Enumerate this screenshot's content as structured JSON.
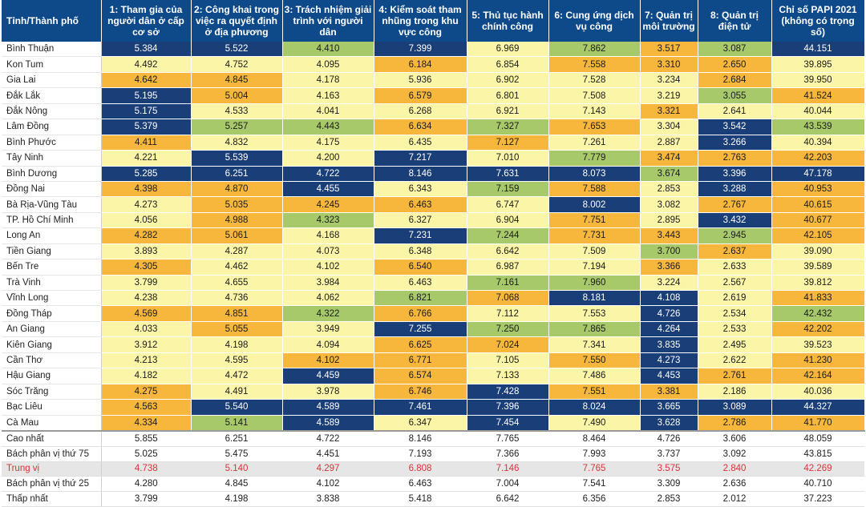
{
  "header": [
    "Tỉnh/Thành phố",
    "1: Tham gia của người dân ở cấp cơ sở",
    "2: Công khai trong việc ra quyết định ở địa phương",
    "3: Trách nhiệm giải trình với người dân",
    "4: Kiểm soát tham nhũng trong khu vực công",
    "5: Thủ tục hành chính công",
    "6: Cung ứng dịch vụ công",
    "7: Quản trị môi trường",
    "8: Quản trị điện tử",
    "Chỉ số PAPI 2021 (không có trọng số)"
  ],
  "color_scale": {
    "navy": "#1a3e78",
    "green": "#a8c96a",
    "orange": "#f6b73c",
    "yellow": "#fbf5a8",
    "header": "#0e4a8a",
    "median_text": "#d8343a"
  },
  "rows": [
    {
      "name": "Bình Thuận",
      "v": [
        "5.384",
        "5.522",
        "4.410",
        "7.399",
        "6.969",
        "7.862",
        "3.517",
        "3.087",
        "44.151"
      ],
      "c": [
        "n",
        "n",
        "g",
        "n",
        "y",
        "g",
        "o",
        "g",
        "n"
      ]
    },
    {
      "name": "Kon Tum",
      "v": [
        "4.492",
        "4.752",
        "4.095",
        "6.184",
        "6.854",
        "7.558",
        "3.310",
        "2.650",
        "39.895"
      ],
      "c": [
        "y",
        "y",
        "y",
        "o",
        "y",
        "o",
        "o",
        "o",
        "y"
      ]
    },
    {
      "name": "Gia Lai",
      "v": [
        "4.642",
        "4.845",
        "4.178",
        "5.936",
        "6.902",
        "7.528",
        "3.234",
        "2.684",
        "39.950"
      ],
      "c": [
        "o",
        "o",
        "y",
        "y",
        "y",
        "y",
        "y",
        "o",
        "y"
      ]
    },
    {
      "name": "Đắk Lắk",
      "v": [
        "5.195",
        "5.004",
        "4.163",
        "6.579",
        "6.801",
        "7.508",
        "3.219",
        "3.055",
        "41.524"
      ],
      "c": [
        "n",
        "o",
        "y",
        "o",
        "y",
        "y",
        "y",
        "g",
        "o"
      ]
    },
    {
      "name": "Đắk Nông",
      "v": [
        "5.175",
        "4.533",
        "4.041",
        "6.268",
        "6.921",
        "7.143",
        "3.321",
        "2.641",
        "40.044"
      ],
      "c": [
        "n",
        "y",
        "y",
        "y",
        "y",
        "y",
        "o",
        "y",
        "y"
      ]
    },
    {
      "name": "Lâm Đồng",
      "v": [
        "5.379",
        "5.257",
        "4.443",
        "6.634",
        "7.327",
        "7.653",
        "3.304",
        "3.542",
        "43.539"
      ],
      "c": [
        "n",
        "g",
        "g",
        "o",
        "g",
        "o",
        "y",
        "n",
        "g"
      ]
    },
    {
      "name": "Bình Phước",
      "v": [
        "4.411",
        "4.832",
        "4.175",
        "6.435",
        "7.127",
        "7.261",
        "2.887",
        "3.266",
        "40.394"
      ],
      "c": [
        "o",
        "y",
        "y",
        "y",
        "o",
        "y",
        "y",
        "n",
        "y"
      ]
    },
    {
      "name": "Tây Ninh",
      "v": [
        "4.221",
        "5.539",
        "4.200",
        "7.217",
        "7.010",
        "7.779",
        "3.474",
        "2.763",
        "42.203"
      ],
      "c": [
        "y",
        "n",
        "y",
        "n",
        "y",
        "g",
        "o",
        "o",
        "o"
      ]
    },
    {
      "name": "Bình Dương",
      "v": [
        "5.285",
        "6.251",
        "4.722",
        "8.146",
        "7.631",
        "8.073",
        "3.674",
        "3.396",
        "47.178"
      ],
      "c": [
        "n",
        "n",
        "n",
        "n",
        "n",
        "n",
        "g",
        "n",
        "n"
      ]
    },
    {
      "name": "Đồng Nai",
      "v": [
        "4.398",
        "4.870",
        "4.455",
        "6.343",
        "7.159",
        "7.588",
        "2.853",
        "3.288",
        "40.953"
      ],
      "c": [
        "o",
        "o",
        "n",
        "y",
        "g",
        "o",
        "y",
        "n",
        "o"
      ]
    },
    {
      "name": "Bà Rịa-Vũng Tàu",
      "v": [
        "4.273",
        "5.035",
        "4.245",
        "6.463",
        "6.747",
        "8.002",
        "3.082",
        "2.767",
        "40.615"
      ],
      "c": [
        "y",
        "o",
        "o",
        "o",
        "y",
        "n",
        "y",
        "o",
        "o"
      ]
    },
    {
      "name": "TP. Hồ Chí Minh",
      "v": [
        "4.056",
        "4.988",
        "4.323",
        "6.327",
        "6.904",
        "7.751",
        "2.895",
        "3.432",
        "40.677"
      ],
      "c": [
        "y",
        "o",
        "g",
        "y",
        "y",
        "o",
        "y",
        "n",
        "o"
      ]
    },
    {
      "name": "Long An",
      "v": [
        "4.282",
        "5.061",
        "4.168",
        "7.231",
        "7.244",
        "7.731",
        "3.443",
        "2.945",
        "42.105"
      ],
      "c": [
        "o",
        "o",
        "y",
        "n",
        "g",
        "o",
        "o",
        "g",
        "o"
      ]
    },
    {
      "name": "Tiền Giang",
      "v": [
        "3.893",
        "4.287",
        "4.073",
        "6.348",
        "6.642",
        "7.509",
        "3.700",
        "2.637",
        "39.090"
      ],
      "c": [
        "y",
        "y",
        "y",
        "y",
        "y",
        "y",
        "g",
        "o",
        "y"
      ]
    },
    {
      "name": "Bến Tre",
      "v": [
        "4.305",
        "4.462",
        "4.102",
        "6.540",
        "6.987",
        "7.194",
        "3.366",
        "2.633",
        "39.589"
      ],
      "c": [
        "o",
        "y",
        "y",
        "o",
        "y",
        "y",
        "o",
        "y",
        "y"
      ]
    },
    {
      "name": "Trà Vinh",
      "v": [
        "3.799",
        "4.655",
        "3.984",
        "6.463",
        "7.161",
        "7.960",
        "3.224",
        "2.567",
        "39.812"
      ],
      "c": [
        "y",
        "y",
        "y",
        "y",
        "g",
        "g",
        "y",
        "y",
        "y"
      ]
    },
    {
      "name": "Vĩnh Long",
      "v": [
        "4.238",
        "4.736",
        "4.062",
        "6.821",
        "7.068",
        "8.181",
        "4.108",
        "2.619",
        "41.833"
      ],
      "c": [
        "y",
        "y",
        "y",
        "g",
        "o",
        "n",
        "n",
        "y",
        "o"
      ]
    },
    {
      "name": "Đồng Tháp",
      "v": [
        "4.569",
        "4.851",
        "4.322",
        "6.766",
        "7.112",
        "7.553",
        "4.726",
        "2.534",
        "42.432"
      ],
      "c": [
        "o",
        "o",
        "g",
        "o",
        "y",
        "y",
        "n",
        "y",
        "g"
      ]
    },
    {
      "name": "An Giang",
      "v": [
        "4.033",
        "5.055",
        "3.949",
        "7.255",
        "7.250",
        "7.865",
        "4.264",
        "2.533",
        "42.202"
      ],
      "c": [
        "y",
        "o",
        "y",
        "n",
        "g",
        "g",
        "n",
        "y",
        "o"
      ]
    },
    {
      "name": "Kiên Giang",
      "v": [
        "3.912",
        "4.198",
        "4.094",
        "6.625",
        "7.024",
        "7.341",
        "3.835",
        "2.495",
        "39.523"
      ],
      "c": [
        "y",
        "y",
        "y",
        "o",
        "o",
        "y",
        "n",
        "y",
        "y"
      ]
    },
    {
      "name": "Cần Thơ",
      "v": [
        "4.213",
        "4.595",
        "4.102",
        "6.771",
        "7.105",
        "7.550",
        "4.273",
        "2.622",
        "41.230"
      ],
      "c": [
        "y",
        "y",
        "o",
        "o",
        "y",
        "o",
        "n",
        "y",
        "o"
      ]
    },
    {
      "name": "Hậu Giang",
      "v": [
        "4.182",
        "4.472",
        "4.459",
        "6.574",
        "7.133",
        "7.486",
        "4.453",
        "2.761",
        "42.164"
      ],
      "c": [
        "y",
        "y",
        "n",
        "o",
        "y",
        "y",
        "n",
        "o",
        "o"
      ]
    },
    {
      "name": "Sóc Trăng",
      "v": [
        "4.275",
        "4.491",
        "3.978",
        "6.746",
        "7.428",
        "7.551",
        "3.381",
        "2.186",
        "40.036"
      ],
      "c": [
        "o",
        "y",
        "y",
        "o",
        "n",
        "o",
        "o",
        "y",
        "y"
      ]
    },
    {
      "name": "Bạc Liêu",
      "v": [
        "4.563",
        "5.540",
        "4.589",
        "7.461",
        "7.396",
        "8.024",
        "3.665",
        "3.089",
        "44.327"
      ],
      "c": [
        "o",
        "n",
        "n",
        "n",
        "n",
        "n",
        "n",
        "n",
        "n"
      ]
    },
    {
      "name": "Cà Mau",
      "v": [
        "4.334",
        "5.141",
        "4.589",
        "6.347",
        "7.454",
        "7.490",
        "3.628",
        "2.786",
        "41.770"
      ],
      "c": [
        "o",
        "g",
        "n",
        "y",
        "n",
        "y",
        "n",
        "o",
        "o"
      ]
    }
  ],
  "stats": [
    {
      "name": "Cao nhất",
      "v": [
        "5.855",
        "6.251",
        "4.722",
        "8.146",
        "7.765",
        "8.464",
        "4.726",
        "3.606",
        "48.059"
      ]
    },
    {
      "name": "Bách phân vị thứ 75",
      "v": [
        "5.025",
        "5.475",
        "4.451",
        "7.193",
        "7.366",
        "7.993",
        "3.737",
        "3.092",
        "43.815"
      ]
    },
    {
      "name": "Trung vị",
      "v": [
        "4.738",
        "5.140",
        "4.297",
        "6.808",
        "7.146",
        "7.765",
        "3.575",
        "2.840",
        "42.269"
      ],
      "median": true
    },
    {
      "name": "Bách phân vị thứ 25",
      "v": [
        "4.280",
        "4.845",
        "4.102",
        "6.463",
        "7.004",
        "7.541",
        "3.309",
        "2.636",
        "40.710"
      ]
    },
    {
      "name": "Thấp nhất",
      "v": [
        "3.799",
        "4.198",
        "3.838",
        "5.418",
        "6.642",
        "6.356",
        "2.853",
        "2.012",
        "37.223"
      ]
    }
  ]
}
